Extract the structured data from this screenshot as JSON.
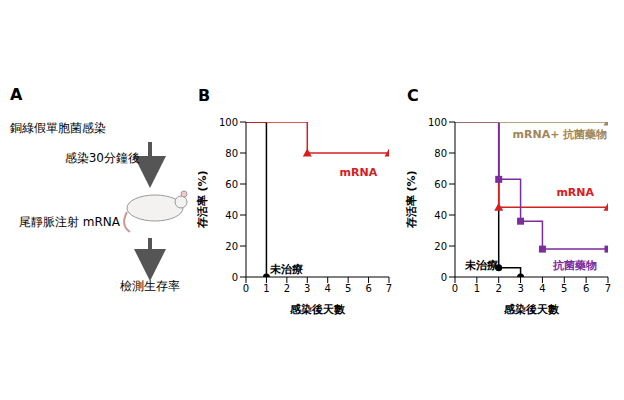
{
  "diagram": {
    "letter": "A",
    "steps": [
      "銅綠假單胞菌感染",
      "感染30分鐘後",
      "尾靜脈注射 mRNA",
      "檢測生存率"
    ]
  },
  "chart_data": [
    {
      "letter": "B",
      "type": "line",
      "line_style": "step",
      "x_label": "感染後天數",
      "y_label": "存活率 (%)",
      "x": [
        0,
        1,
        2,
        3,
        4,
        5,
        6,
        7
      ],
      "xlim": [
        0,
        7
      ],
      "xticks": [
        0,
        1,
        2,
        3,
        4,
        5,
        6,
        7
      ],
      "ylim": [
        0,
        100
      ],
      "yticks": [
        0,
        20,
        40,
        60,
        80,
        100
      ],
      "series": [
        {
          "name": "未治療",
          "color": "#000000",
          "marker": "circle",
          "values": [
            100,
            0,
            null,
            null,
            null,
            null,
            null,
            null
          ]
        },
        {
          "name": "mRNA",
          "color": "#d62020",
          "marker": "triangle",
          "values": [
            100,
            100,
            100,
            80,
            80,
            80,
            80,
            80
          ]
        }
      ]
    },
    {
      "letter": "C",
      "type": "line",
      "line_style": "step",
      "x_label": "感染後天數",
      "y_label": "存活率 (%)",
      "x": [
        0,
        1,
        2,
        3,
        4,
        5,
        6,
        7
      ],
      "xlim": [
        0,
        7
      ],
      "xticks": [
        0,
        1,
        2,
        3,
        4,
        5,
        6,
        7
      ],
      "ylim": [
        0,
        100
      ],
      "yticks": [
        0,
        20,
        40,
        60,
        80,
        100
      ],
      "series": [
        {
          "name": "未治療",
          "color": "#000000",
          "marker": "circle",
          "values": [
            100,
            100,
            6,
            0,
            null,
            null,
            null,
            null
          ]
        },
        {
          "name": "mRNA",
          "color": "#d62020",
          "marker": "triangle",
          "values": [
            100,
            100,
            45,
            45,
            45,
            45,
            45,
            45
          ]
        },
        {
          "name": "抗菌藥物",
          "color": "#7b2d9e",
          "marker": "square",
          "values": [
            100,
            100,
            63,
            36,
            18,
            18,
            18,
            18
          ]
        },
        {
          "name": "mRNA+ 抗菌藥物",
          "color": "#a0875a",
          "marker": "triangle",
          "values": [
            100,
            100,
            100,
            100,
            100,
            100,
            100,
            100
          ]
        }
      ]
    }
  ]
}
